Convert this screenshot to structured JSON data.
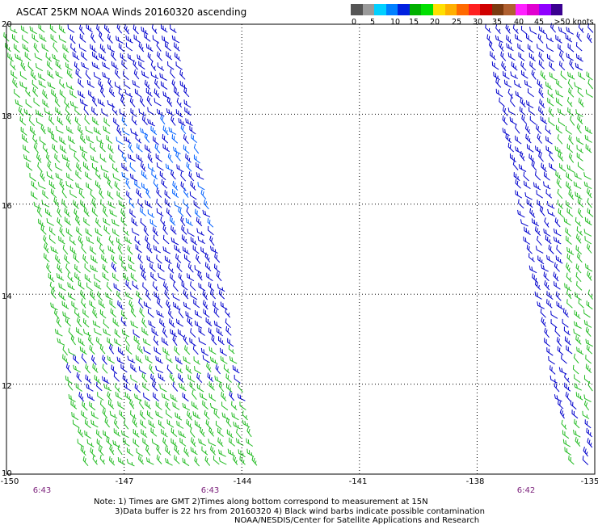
{
  "header": {
    "title": "ASCAT 25KM NOAA Winds 20160320 ascending"
  },
  "legend": {
    "colors": [
      "#555555",
      "#9a9a9a",
      "#00d0ff",
      "#0080ff",
      "#0020e0",
      "#00b000",
      "#00e000",
      "#ffe000",
      "#ffb000",
      "#ff6a00",
      "#ff2020",
      "#d00000",
      "#7a3a10",
      "#b06030",
      "#ff20ff",
      "#e000d0",
      "#9000ff",
      "#3a0090"
    ],
    "labels": [
      "0",
      "5",
      "10",
      "15",
      "20",
      "25",
      "30",
      "35",
      "40",
      "45",
      ">50 knots"
    ]
  },
  "axes": {
    "y_labels": [
      "20",
      "18",
      "16",
      "14",
      "12",
      "10"
    ],
    "x_labels": [
      "-150",
      "-147",
      "-144",
      "-141",
      "-138",
      "-135"
    ],
    "time_labels": [
      "6:43",
      "6:43",
      "6:42"
    ]
  },
  "notes": {
    "line1": "Note: 1) Times are GMT 2)Times along bottom correspond to measurement at 15N",
    "line2": "3)Data buffer is 22 hrs from 20160320 4) Black wind barbs indicate possible contamination",
    "line3": "NOAA/NESDIS/Center for Satellite Applications and Research"
  },
  "map": {
    "lon_range": [
      -150,
      -135
    ],
    "lat_range": [
      10,
      20
    ],
    "swaths": [
      {
        "name": "west-swath",
        "bounds": {
          "top_lat": 20,
          "bottom_lat": 10,
          "top_lon_w": -150,
          "top_lon_e": -145.7,
          "bottom_lon_w": -147.9,
          "bottom_lon_e": -143.6
        }
      },
      {
        "name": "east-swath",
        "bounds": {
          "top_lat": 20,
          "bottom_lat": 10,
          "top_lon_w": -137.7,
          "top_lon_e": -134.8,
          "bottom_lon_w": -135.5,
          "bottom_lon_e": -134.8
        }
      }
    ],
    "barb_colors": {
      "green": "#22bb22",
      "blue": "#0000cc",
      "light_blue": "#0060ff"
    }
  }
}
